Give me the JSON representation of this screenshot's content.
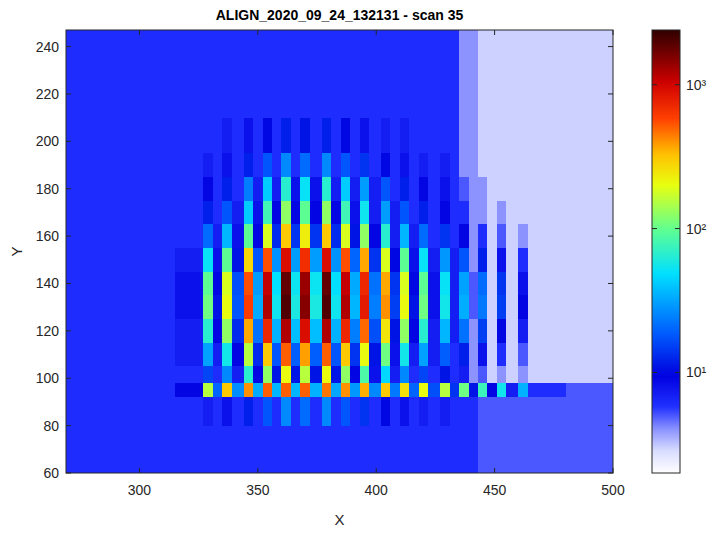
{
  "chart_data": {
    "type": "heatmap",
    "title": "ALIGN_2020_09_24_132131 - scan 35",
    "x_label": "X",
    "y_label": "Y",
    "xlim": [
      269,
      500
    ],
    "ylim": [
      60,
      247
    ],
    "xticks": [
      300,
      350,
      400,
      450,
      500
    ],
    "yticks": [
      60,
      80,
      100,
      120,
      140,
      160,
      180,
      200,
      220,
      240
    ],
    "log": true,
    "color_range": [
      2,
      2400
    ],
    "color_ticks": [
      {
        "value": 10,
        "label": "10¹"
      },
      {
        "value": 100,
        "label": "10²"
      },
      {
        "value": 1000,
        "label": "10³"
      }
    ],
    "x_edges": [
      269,
      280,
      300,
      315,
      327,
      331,
      335,
      339,
      344,
      348,
      352,
      356,
      360,
      364,
      368,
      372,
      377,
      381,
      385,
      389,
      393,
      397,
      402,
      406,
      410,
      414,
      418,
      422,
      427,
      431,
      435,
      439,
      443,
      447,
      451,
      455,
      460,
      464,
      480,
      500
    ],
    "y_edges": [
      60,
      80,
      92,
      98,
      105,
      115,
      125,
      135,
      145,
      155,
      165,
      175,
      185,
      195,
      210,
      230,
      247
    ],
    "values": [
      [
        6,
        6,
        6,
        6,
        6,
        6,
        6,
        6,
        6,
        6,
        6,
        6,
        6,
        6,
        6,
        6,
        6,
        6,
        6,
        6,
        6,
        6,
        6,
        6,
        6,
        6,
        6,
        6,
        6,
        6,
        6,
        6,
        5,
        5,
        5,
        5,
        5,
        5,
        5
      ],
      [
        6,
        6,
        6,
        6,
        7,
        6,
        8,
        6,
        12,
        6,
        18,
        6,
        26,
        6,
        21,
        6,
        26,
        6,
        18,
        6,
        14,
        6,
        10,
        6,
        8,
        6,
        7,
        6,
        7,
        6,
        6,
        6,
        5,
        5,
        5,
        5,
        5,
        5,
        5
      ],
      [
        6,
        6,
        6,
        9,
        156,
        20,
        306,
        27,
        406,
        33,
        506,
        36,
        506,
        36,
        506,
        35,
        456,
        32,
        406,
        29,
        356,
        26,
        306,
        23,
        256,
        20,
        206,
        17,
        156,
        14,
        106,
        11,
        75,
        9,
        55,
        7,
        35,
        6,
        5
      ],
      [
        6,
        6,
        6,
        6,
        16,
        6,
        26,
        7,
        66,
        9,
        126,
        11,
        206,
        11,
        156,
        11,
        206,
        11,
        126,
        9,
        86,
        8,
        46,
        7,
        26,
        6,
        16,
        6,
        11,
        6,
        7,
        4,
        5,
        3,
        4,
        3,
        4,
        3,
        3
      ],
      [
        6,
        6,
        6,
        7,
        31,
        7,
        56,
        9,
        156,
        13,
        306,
        18,
        506,
        19,
        381,
        19,
        506,
        18,
        306,
        14,
        206,
        11,
        106,
        8,
        56,
        7,
        31,
        7,
        19,
        6,
        12,
        4,
        8,
        3,
        6,
        3,
        5,
        3,
        3
      ],
      [
        6,
        6,
        6,
        7,
        66,
        9,
        126,
        13,
        366,
        22,
        726,
        35,
        1206,
        38,
        906,
        38,
        1206,
        35,
        726,
        24,
        486,
        17,
        246,
        11,
        126,
        9,
        66,
        7,
        36,
        7,
        22,
        4,
        15,
        3,
        10,
        3,
        7,
        3,
        3
      ],
      [
        6,
        6,
        6,
        8,
        106,
        11,
        206,
        18,
        606,
        33,
        1206,
        54,
        2006,
        59,
        1506,
        59,
        2006,
        54,
        1206,
        36,
        806,
        24,
        406,
        15,
        206,
        11,
        106,
        8,
        56,
        7,
        34,
        5,
        23,
        3,
        15,
        3,
        9,
        3,
        3
      ],
      [
        6,
        6,
        6,
        8,
        96,
        10,
        186,
        17,
        546,
        30,
        1086,
        49,
        1806,
        53,
        1356,
        53,
        1806,
        49,
        1086,
        33,
        726,
        22,
        366,
        14,
        186,
        10,
        96,
        8,
        51,
        7,
        31,
        5,
        21,
        3,
        14,
        3,
        8,
        3,
        3
      ],
      [
        6,
        6,
        6,
        7,
        51,
        8,
        96,
        11,
        276,
        18,
        546,
        28,
        906,
        30,
        681,
        30,
        906,
        28,
        546,
        20,
        366,
        14,
        186,
        10,
        96,
        8,
        51,
        7,
        29,
        7,
        18,
        4,
        12,
        3,
        8,
        3,
        6,
        3,
        3
      ],
      [
        6,
        6,
        6,
        6,
        21,
        7,
        36,
        8,
        96,
        10,
        186,
        13,
        306,
        14,
        231,
        14,
        306,
        13,
        186,
        11,
        126,
        9,
        66,
        7,
        36,
        7,
        21,
        6,
        14,
        6,
        9,
        4,
        6,
        3,
        5,
        3,
        4,
        3,
        3
      ],
      [
        6,
        6,
        6,
        6,
        12,
        6,
        18,
        7,
        42,
        8,
        78,
        9,
        126,
        9,
        96,
        9,
        126,
        9,
        78,
        8,
        54,
        7,
        30,
        7,
        18,
        6,
        12,
        6,
        9,
        6,
        6,
        4,
        4,
        3,
        4,
        3,
        3,
        3,
        3
      ],
      [
        6,
        6,
        6,
        6,
        9,
        6,
        12,
        6,
        24,
        7,
        42,
        7,
        66,
        8,
        51,
        8,
        66,
        7,
        42,
        7,
        30,
        7,
        18,
        6,
        12,
        6,
        9,
        6,
        8,
        6,
        5,
        4,
        4,
        3,
        3,
        3,
        3,
        3,
        3
      ],
      [
        6,
        6,
        6,
        6,
        7,
        6,
        8,
        6,
        12,
        6,
        18,
        6,
        26,
        6,
        21,
        6,
        26,
        6,
        18,
        6,
        14,
        6,
        10,
        6,
        8,
        6,
        7,
        6,
        7,
        6,
        4,
        4,
        3,
        3,
        3,
        3,
        3,
        3,
        3
      ],
      [
        6,
        6,
        6,
        6,
        6,
        6,
        7,
        6,
        8,
        6,
        10,
        6,
        12,
        6,
        11,
        6,
        12,
        6,
        10,
        6,
        8,
        6,
        7,
        6,
        7,
        6,
        6,
        6,
        6,
        6,
        4,
        4,
        3,
        3,
        3,
        3,
        3,
        3,
        3
      ],
      [
        6,
        6,
        6,
        6,
        6,
        6,
        6,
        6,
        6,
        6,
        6,
        6,
        6,
        6,
        6,
        6,
        6,
        6,
        6,
        6,
        6,
        6,
        6,
        6,
        6,
        6,
        6,
        6,
        6,
        6,
        4,
        4,
        3,
        3,
        3,
        3,
        3,
        3,
        3
      ],
      [
        6,
        6,
        6,
        6,
        6,
        6,
        6,
        6,
        6,
        6,
        6,
        6,
        6,
        6,
        6,
        6,
        6,
        6,
        6,
        6,
        6,
        6,
        6,
        6,
        6,
        6,
        6,
        6,
        6,
        6,
        4,
        4,
        3,
        3,
        3,
        3,
        3,
        3,
        3
      ]
    ]
  }
}
